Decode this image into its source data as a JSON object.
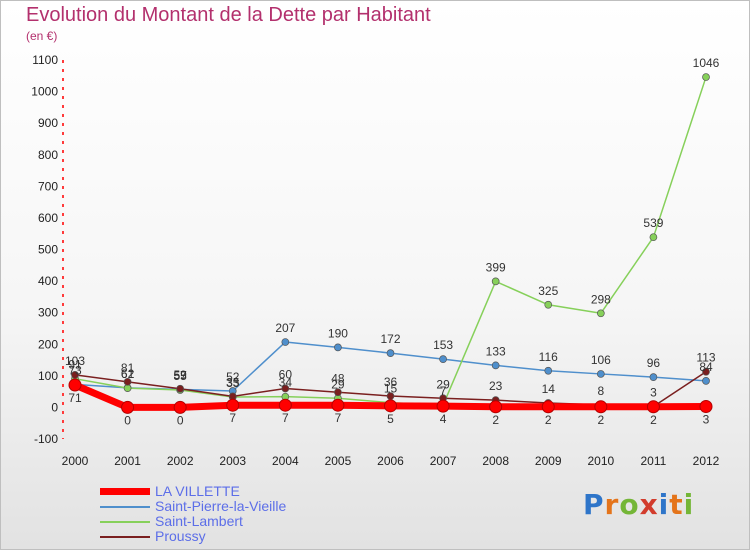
{
  "title": "Evolution du Montant de la Dette par Habitant",
  "subtitle": "(en €)",
  "logo": {
    "letters": [
      "P",
      "r",
      "o",
      "x",
      "i",
      "t",
      "i"
    ],
    "colors": [
      "#2e75c9",
      "#e4741a",
      "#74b637",
      "#d23c2d",
      "#2e75c9",
      "#e4741a",
      "#74b637"
    ]
  },
  "chart_data": {
    "type": "line",
    "title": "Evolution du Montant de la Dette par Habitant",
    "subtitle": "(en €)",
    "xlabel": "",
    "ylabel": "",
    "x": [
      "2000",
      "2001",
      "2002",
      "2003",
      "2004",
      "2005",
      "2006",
      "2007",
      "2008",
      "2009",
      "2010",
      "2011",
      "2012"
    ],
    "yticks": [
      "-100",
      "0",
      "100",
      "200",
      "300",
      "400",
      "500",
      "600",
      "700",
      "800",
      "900",
      "1000",
      "1100"
    ],
    "ylim": [
      -100,
      1100
    ],
    "grid": false,
    "legend": "bottom-left",
    "series": [
      {
        "name": "LA VILLETTE",
        "color": "#ff0000",
        "values": [
          71,
          0,
          0,
          7,
          7,
          7,
          5,
          4,
          2,
          2,
          2,
          2,
          3
        ]
      },
      {
        "name": "Saint-Pierre-la-Vieille",
        "color": "#4f8fcc",
        "values": [
          73,
          62,
          57,
          52,
          207,
          190,
          172,
          153,
          133,
          116,
          106,
          96,
          84
        ]
      },
      {
        "name": "Saint-Lambert",
        "color": "#86d05a",
        "values": [
          91,
          61,
          55,
          33,
          34,
          29,
          15,
          7,
          399,
          325,
          298,
          539,
          1046
        ]
      },
      {
        "name": "Proussy",
        "color": "#7a1f1f",
        "values": [
          103,
          81,
          59,
          35,
          60,
          48,
          36,
          29,
          23,
          14,
          8,
          3,
          113
        ]
      }
    ],
    "labels": [
      {
        "series": 0,
        "text": [
          "71",
          "0",
          "0",
          "7",
          "7",
          "7",
          "5",
          "4",
          "2",
          "2",
          "2",
          "2",
          "3"
        ]
      },
      {
        "series": 1,
        "text": [
          "73",
          "62",
          "57",
          "52",
          "207",
          "190",
          "172",
          "153",
          "133",
          "116",
          "106",
          "96",
          "84"
        ]
      },
      {
        "series": 2,
        "text": [
          "91",
          "61",
          "55",
          "33",
          "34",
          "29",
          "15",
          "7",
          "399",
          "325",
          "298",
          "539",
          "1046"
        ]
      },
      {
        "series": 3,
        "text": [
          "103",
          "81",
          "59",
          "35",
          "60",
          "48",
          "36",
          "29",
          "23",
          "14",
          "8",
          "3",
          "113"
        ]
      }
    ]
  }
}
